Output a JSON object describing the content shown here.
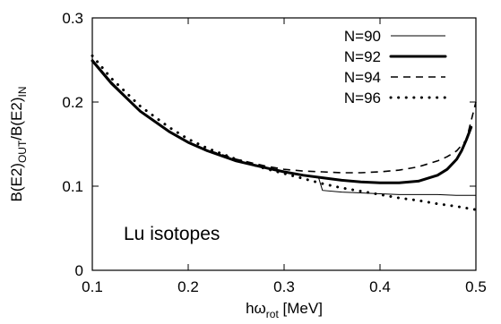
{
  "chart_data": {
    "type": "line",
    "xlabel_main": "hω",
    "xlabel_sub": "rot",
    "xlabel_unit": " [MeV]",
    "ylabel_b1": "B(E2)",
    "ylabel_s1": "OUT",
    "ylabel_mid": "/B(E2)",
    "ylabel_s2": "IN",
    "xlim": [
      0.1,
      0.5
    ],
    "ylim": [
      0,
      0.3
    ],
    "xticks": [
      "0.1",
      "0.2",
      "0.3",
      "0.4",
      "0.5"
    ],
    "yticks": [
      "0",
      "0.1",
      "0.2",
      "0.3"
    ],
    "annotation": "Lu isotopes",
    "legend_position": "top-right",
    "series": [
      {
        "name": "N=90",
        "style": "thin-solid",
        "x": [
          0.1,
          0.12,
          0.15,
          0.18,
          0.2,
          0.22,
          0.25,
          0.28,
          0.3,
          0.32,
          0.33,
          0.336,
          0.34,
          0.36,
          0.38,
          0.4,
          0.42,
          0.44,
          0.46,
          0.48,
          0.5
        ],
        "y": [
          0.251,
          0.224,
          0.19,
          0.166,
          0.153,
          0.143,
          0.131,
          0.122,
          0.117,
          0.113,
          0.111,
          0.11,
          0.095,
          0.093,
          0.092,
          0.091,
          0.09,
          0.09,
          0.09,
          0.089,
          0.089
        ]
      },
      {
        "name": "N=92",
        "style": "thick-solid",
        "x": [
          0.1,
          0.12,
          0.15,
          0.18,
          0.2,
          0.22,
          0.25,
          0.28,
          0.3,
          0.32,
          0.34,
          0.36,
          0.38,
          0.4,
          0.42,
          0.44,
          0.46,
          0.47,
          0.48,
          0.485,
          0.49,
          0.495
        ],
        "y": [
          0.249,
          0.222,
          0.189,
          0.165,
          0.152,
          0.142,
          0.13,
          0.122,
          0.117,
          0.113,
          0.11,
          0.107,
          0.105,
          0.104,
          0.104,
          0.106,
          0.113,
          0.12,
          0.132,
          0.142,
          0.155,
          0.17
        ]
      },
      {
        "name": "N=94",
        "style": "dashed",
        "x": [
          0.1,
          0.12,
          0.15,
          0.18,
          0.2,
          0.22,
          0.25,
          0.28,
          0.3,
          0.32,
          0.34,
          0.36,
          0.38,
          0.4,
          0.42,
          0.44,
          0.46,
          0.47,
          0.48,
          0.49,
          0.5
        ],
        "y": [
          0.249,
          0.222,
          0.189,
          0.165,
          0.152,
          0.143,
          0.132,
          0.124,
          0.12,
          0.118,
          0.117,
          0.116,
          0.116,
          0.117,
          0.119,
          0.123,
          0.13,
          0.135,
          0.142,
          0.155,
          0.2
        ]
      },
      {
        "name": "N=96",
        "style": "dotted",
        "x": [
          0.1,
          0.12,
          0.15,
          0.18,
          0.2,
          0.22,
          0.25,
          0.28,
          0.3,
          0.32,
          0.34,
          0.36,
          0.38,
          0.4,
          0.42,
          0.44,
          0.46,
          0.48,
          0.5
        ],
        "y": [
          0.255,
          0.228,
          0.195,
          0.17,
          0.156,
          0.145,
          0.132,
          0.121,
          0.115,
          0.109,
          0.103,
          0.098,
          0.094,
          0.09,
          0.086,
          0.083,
          0.079,
          0.076,
          0.072
        ]
      }
    ]
  }
}
